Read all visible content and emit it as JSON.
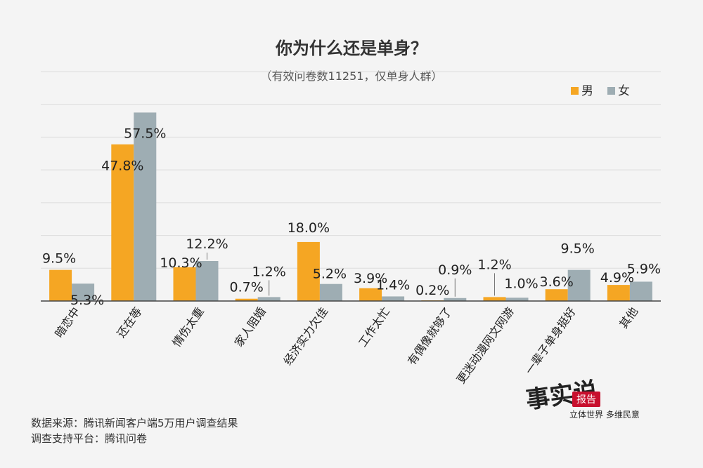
{
  "chart_data": {
    "type": "bar",
    "title": "你为什么还是单身？",
    "subtitle": "（有效问卷数11251，仅单身人群）",
    "categories": [
      "暗恋中",
      "还在等",
      "情伤太重",
      "家人阻婚",
      "经济实力欠佳",
      "工作太忙",
      "有偶像就够了",
      "更迷动漫网文网游",
      "一辈子单身挺好",
      "其他"
    ],
    "series": [
      {
        "name": "男",
        "color": "#f5a623",
        "values": [
          9.5,
          47.8,
          10.3,
          0.7,
          18.0,
          3.9,
          0.2,
          1.2,
          3.6,
          4.9
        ]
      },
      {
        "name": "女",
        "color": "#9eadb3",
        "values": [
          5.3,
          57.5,
          12.2,
          1.2,
          5.2,
          1.4,
          0.9,
          1.0,
          9.5,
          5.9
        ]
      }
    ],
    "value_labels": {
      "男": [
        "9.5%",
        "47.8%",
        "10.3%",
        "0.7%",
        "18.0%",
        "3.9%",
        "0.2%",
        "1.2%",
        "3.6%",
        "4.9%"
      ],
      "女": [
        "5.3%",
        "57.5%",
        "12.2%",
        "1.2%",
        "5.2%",
        "1.4%",
        "0.9%",
        "1.0%",
        "9.5%",
        "5.9%"
      ]
    },
    "ylim": [
      0,
      70
    ],
    "grid": true,
    "legend_position": "top-right"
  },
  "footer": {
    "source_line": "数据来源：腾讯新闻客户端5万用户调查结果",
    "support_line": "调查支持平台：腾讯问卷"
  },
  "logo": {
    "brush_text": "事实说",
    "badge": "报告",
    "slogan": "立体世界 多维民意"
  }
}
